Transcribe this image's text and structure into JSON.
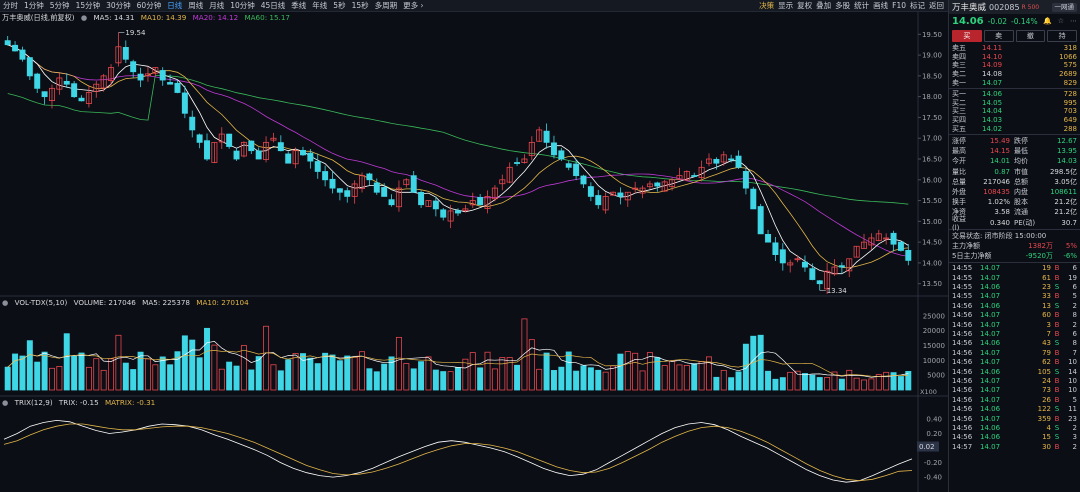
{
  "toolbar": {
    "periods": [
      "分时",
      "1分钟",
      "5分钟",
      "15分钟",
      "30分钟",
      "60分钟",
      "日线",
      "周线",
      "月线",
      "10分钟",
      "45日线",
      "季线",
      "年线",
      "5秒",
      "15秒",
      "多周期",
      "更多 ›"
    ],
    "active_period": "日线",
    "right_items": [
      {
        "label": "决策",
        "gold": true
      },
      {
        "label": "显示"
      },
      {
        "label": "复权"
      },
      {
        "label": "叠加"
      },
      {
        "label": "多股"
      },
      {
        "label": "统计"
      },
      {
        "label": "画线"
      },
      {
        "label": "F10"
      },
      {
        "label": "标记"
      },
      {
        "label": "返回"
      }
    ]
  },
  "kline_info": {
    "name": "万丰奥威(日线,前复权)",
    "ma5": "MA5: 14.31",
    "ma10": "MA10: 14.39",
    "ma20": "MA20: 14.12",
    "ma60": "MA60: 15.17",
    "high_label": "19.54",
    "low_label": "13.34"
  },
  "volume_info": {
    "name": "VOL-TDX(5,10)",
    "volume": "VOLUME: 217046",
    "ma5": "MA5: 225378",
    "ma10": "MA10: 270104",
    "unit": "X100"
  },
  "trix_info": {
    "name": "TRIX(12,9)",
    "trix": "TRIX: -0.15",
    "matrix": "MATRIX: -0.31",
    "current_tag": "0.02"
  },
  "axes": {
    "price_ticks": [
      "19.50",
      "19.00",
      "18.50",
      "18.00",
      "17.50",
      "17.00",
      "16.50",
      "16.00",
      "15.50",
      "15.00",
      "14.50",
      "14.00",
      "13.50"
    ],
    "volume_ticks": [
      "25000",
      "20000",
      "15000",
      "10000",
      "5000"
    ],
    "trix_ticks": [
      "0.40",
      "0.20",
      "-0.20",
      "-0.40"
    ]
  },
  "colors": {
    "up": "#e8474f",
    "down": "#3fd6e6",
    "ma5": "#ffffff",
    "ma10": "#e3b64a",
    "ma20": "#c03ad8",
    "ma60": "#3ab85a"
  },
  "panel": {
    "title": "万丰奥威",
    "code": "002085",
    "tag": "R 500",
    "btn": "一网通",
    "price": "14.06",
    "change": "-0.02",
    "change_pct": "-0.14%",
    "trade_buttons": [
      "买",
      "卖",
      "撤",
      "持"
    ],
    "asks": [
      {
        "label": "卖五",
        "price": "14.11",
        "vol": "318",
        "cls": "up"
      },
      {
        "label": "卖四",
        "price": "14.10",
        "vol": "1066",
        "cls": "up"
      },
      {
        "label": "卖三",
        "price": "14.09",
        "vol": "575",
        "cls": "up"
      },
      {
        "label": "卖二",
        "price": "14.08",
        "vol": "2689",
        "cls": "wh"
      },
      {
        "label": "卖一",
        "price": "14.07",
        "vol": "829",
        "cls": "dn"
      }
    ],
    "bids": [
      {
        "label": "买一",
        "price": "14.06",
        "vol": "728",
        "cls": "dn"
      },
      {
        "label": "买二",
        "price": "14.05",
        "vol": "995",
        "cls": "dn"
      },
      {
        "label": "买三",
        "price": "14.04",
        "vol": "703",
        "cls": "dn"
      },
      {
        "label": "买四",
        "price": "14.03",
        "vol": "649",
        "cls": "dn"
      },
      {
        "label": "买五",
        "price": "14.02",
        "vol": "288",
        "cls": "dn"
      }
    ],
    "stats": [
      {
        "k": "涨停",
        "v": "15.49",
        "vc": "up",
        "k2": "跌停",
        "v2": "12.67",
        "v2c": "dn"
      },
      {
        "k": "最高",
        "v": "14.15",
        "vc": "up",
        "k2": "最低",
        "v2": "13.95",
        "v2c": "dn"
      },
      {
        "k": "今开",
        "v": "14.01",
        "vc": "dn",
        "k2": "均价",
        "v2": "14.03",
        "v2c": "dn"
      },
      {
        "k": "量比",
        "v": "0.87",
        "vc": "dn",
        "k2": "市值",
        "v2": "298.5亿",
        "v2c": "wh"
      },
      {
        "k": "总量",
        "v": "217046",
        "vc": "wh",
        "k2": "总额",
        "v2": "3.05亿",
        "v2c": "wh"
      },
      {
        "k": "外盘",
        "v": "108435",
        "vc": "up",
        "k2": "内盘",
        "v2": "108611",
        "v2c": "dn"
      },
      {
        "k": "换手",
        "v": "1.02%",
        "vc": "wh",
        "k2": "股本",
        "v2": "21.2亿",
        "v2c": "wh"
      },
      {
        "k": "净资",
        "v": "3.58",
        "vc": "wh",
        "k2": "流通",
        "v2": "21.2亿",
        "v2c": "wh"
      },
      {
        "k": "收益(l)",
        "v": "0.340",
        "vc": "wh",
        "k2": "PE(动)",
        "v2": "30.7",
        "v2c": "wh"
      }
    ],
    "status": "交易状态: 闭市阶段 15:00:00",
    "flows": [
      {
        "k": "主力净额",
        "v": "1382万",
        "p": "5%",
        "vc": "up"
      },
      {
        "k": "5日主力净额",
        "v": "-9520万",
        "p": "-6%",
        "vc": "dn"
      }
    ],
    "ticks": [
      {
        "t": "14:55",
        "p": "14.07",
        "v": "19",
        "s": "B",
        "n": "6"
      },
      {
        "t": "14:55",
        "p": "14.07",
        "v": "61",
        "s": "B",
        "n": "19"
      },
      {
        "t": "14:55",
        "p": "14.06",
        "v": "23",
        "s": "S",
        "n": "6"
      },
      {
        "t": "14:55",
        "p": "14.07",
        "v": "33",
        "s": "B",
        "n": "5"
      },
      {
        "t": "14:56",
        "p": "14.06",
        "v": "13",
        "s": "S",
        "n": "2"
      },
      {
        "t": "14:56",
        "p": "14.07",
        "v": "60",
        "s": "B",
        "n": "8"
      },
      {
        "t": "14:56",
        "p": "14.07",
        "v": "3",
        "s": "B",
        "n": "2"
      },
      {
        "t": "14:56",
        "p": "14.07",
        "v": "7",
        "s": "B",
        "n": "6"
      },
      {
        "t": "14:56",
        "p": "14.06",
        "v": "43",
        "s": "S",
        "n": "8"
      },
      {
        "t": "14:56",
        "p": "14.07",
        "v": "79",
        "s": "B",
        "n": "7"
      },
      {
        "t": "14:56",
        "p": "14.07",
        "v": "62",
        "s": "B",
        "n": "10"
      },
      {
        "t": "14:56",
        "p": "14.06",
        "v": "105",
        "s": "S",
        "n": "14"
      },
      {
        "t": "14:56",
        "p": "14.07",
        "v": "24",
        "s": "B",
        "n": "10"
      },
      {
        "t": "14:56",
        "p": "14.07",
        "v": "73",
        "s": "B",
        "n": "10"
      },
      {
        "t": "14:56",
        "p": "14.07",
        "v": "26",
        "s": "B",
        "n": "5"
      },
      {
        "t": "14:56",
        "p": "14.06",
        "v": "122",
        "s": "S",
        "n": "11"
      },
      {
        "t": "14:56",
        "p": "14.07",
        "v": "359",
        "s": "B",
        "n": "23"
      },
      {
        "t": "14:56",
        "p": "14.06",
        "v": "4",
        "s": "S",
        "n": "2"
      },
      {
        "t": "14:56",
        "p": "14.06",
        "v": "15",
        "s": "S",
        "n": "3"
      },
      {
        "t": "14:57",
        "p": "14.07",
        "v": "30",
        "s": "B",
        "n": "2"
      }
    ]
  },
  "chart_data": {
    "type": "candlestick",
    "closes": [
      19.25,
      19.1,
      18.9,
      18.5,
      18.2,
      18.0,
      18.2,
      18.45,
      18.3,
      18.0,
      17.9,
      18.1,
      18.3,
      18.5,
      18.7,
      19.2,
      18.9,
      18.6,
      18.4,
      18.55,
      18.7,
      18.4,
      18.3,
      18.1,
      17.6,
      17.2,
      16.9,
      16.5,
      16.9,
      17.1,
      16.8,
      16.5,
      16.9,
      16.7,
      16.5,
      16.9,
      17.0,
      16.7,
      16.4,
      16.7,
      16.6,
      16.45,
      16.2,
      16.0,
      15.8,
      15.7,
      15.6,
      15.9,
      16.1,
      16.0,
      15.7,
      15.6,
      15.4,
      15.8,
      16.0,
      15.7,
      15.4,
      15.5,
      15.3,
      15.1,
      15.25,
      15.2,
      15.3,
      15.5,
      15.4,
      15.6,
      15.8,
      16.0,
      16.3,
      16.4,
      16.5,
      16.9,
      17.2,
      16.9,
      16.6,
      16.5,
      16.3,
      16.1,
      15.9,
      15.6,
      15.4,
      15.6,
      15.7,
      15.6,
      15.7,
      15.8,
      15.8,
      15.9,
      15.85,
      15.95,
      16.0,
      16.1,
      16.2,
      16.1,
      16.3,
      16.5,
      16.4,
      16.6,
      16.5,
      16.3,
      15.8,
      15.3,
      14.7,
      14.5,
      14.2,
      14.0,
      14.0,
      14.1,
      13.9,
      13.6,
      13.5,
      13.8,
      13.9,
      13.9,
      14.1,
      14.4,
      14.5,
      14.6,
      14.7,
      14.6,
      14.45,
      14.3,
      14.06
    ],
    "volume_ticks_max": 27000,
    "trix": [
      0.12,
      0.2,
      0.3,
      0.35,
      0.38,
      0.36,
      0.3,
      0.24,
      0.2,
      0.22,
      0.25,
      0.3,
      0.33,
      0.32,
      0.3,
      0.25,
      0.18,
      0.12,
      0.05,
      -0.02,
      -0.1,
      -0.2,
      -0.28,
      -0.34,
      -0.38,
      -0.4,
      -0.38,
      -0.34,
      -0.28,
      -0.2,
      -0.12,
      -0.05,
      0.02,
      0.08,
      0.1,
      0.08,
      0.04,
      0.0,
      -0.05,
      -0.12,
      -0.2,
      -0.28,
      -0.34,
      -0.38,
      -0.36,
      -0.3,
      -0.2,
      -0.1,
      0.0,
      0.1,
      0.2,
      0.28,
      0.33,
      0.35,
      0.32,
      0.25,
      0.16,
      0.08,
      0.0,
      -0.1,
      -0.2,
      -0.3,
      -0.38,
      -0.44,
      -0.47,
      -0.45,
      -0.38,
      -0.3,
      -0.22,
      -0.15
    ],
    "matrix": [
      0.05,
      0.1,
      0.18,
      0.25,
      0.3,
      0.33,
      0.33,
      0.3,
      0.27,
      0.25,
      0.25,
      0.27,
      0.29,
      0.3,
      0.3,
      0.28,
      0.24,
      0.2,
      0.14,
      0.08,
      0.0,
      -0.08,
      -0.16,
      -0.24,
      -0.3,
      -0.35,
      -0.37,
      -0.36,
      -0.33,
      -0.28,
      -0.22,
      -0.15,
      -0.08,
      -0.02,
      0.03,
      0.06,
      0.06,
      0.04,
      0.0,
      -0.05,
      -0.12,
      -0.19,
      -0.26,
      -0.31,
      -0.34,
      -0.33,
      -0.28,
      -0.2,
      -0.11,
      -0.02,
      0.08,
      0.16,
      0.23,
      0.28,
      0.3,
      0.28,
      0.23,
      0.16,
      0.08,
      -0.02,
      -0.12,
      -0.22,
      -0.31,
      -0.38,
      -0.43,
      -0.45,
      -0.43,
      -0.38,
      -0.32,
      -0.31
    ]
  }
}
